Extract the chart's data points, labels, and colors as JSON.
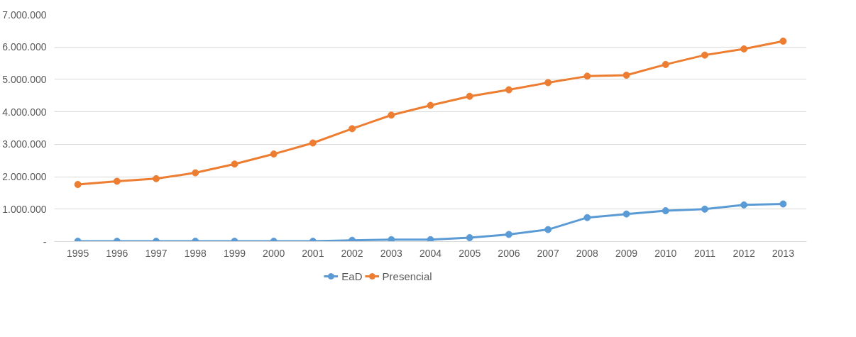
{
  "chart_data": {
    "type": "line",
    "categories": [
      "1995",
      "1996",
      "1997",
      "1998",
      "1999",
      "2000",
      "2001",
      "2002",
      "2003",
      "2004",
      "2005",
      "2006",
      "2007",
      "2008",
      "2009",
      "2010",
      "2011",
      "2012",
      "2013"
    ],
    "series": [
      {
        "name": "EaD",
        "color": "#5b9bd5",
        "values": [
          10000,
          10000,
          10000,
          10000,
          10000,
          10000,
          10000,
          40000,
          60000,
          60000,
          120000,
          220000,
          370000,
          740000,
          850000,
          950000,
          1000000,
          1130000,
          1160000
        ]
      },
      {
        "name": "Presencial",
        "color": "#ed7d31",
        "values": [
          1760000,
          1860000,
          1940000,
          2120000,
          2390000,
          2700000,
          3040000,
          3480000,
          3900000,
          4200000,
          4480000,
          4680000,
          4900000,
          5100000,
          5130000,
          5460000,
          5750000,
          5940000,
          6180000
        ]
      }
    ],
    "ylim": [
      0,
      7000000
    ],
    "yticks": [
      {
        "value": 0,
        "label": "-"
      },
      {
        "value": 1000000,
        "label": "1.000.000"
      },
      {
        "value": 2000000,
        "label": "2.000.000"
      },
      {
        "value": 3000000,
        "label": "3.000.000"
      },
      {
        "value": 4000000,
        "label": "4.000.000"
      },
      {
        "value": 5000000,
        "label": "5.000.000"
      },
      {
        "value": 6000000,
        "label": "6.000.000"
      },
      {
        "value": 7000000,
        "label": "7.000.000"
      }
    ],
    "grid": "y",
    "legend": "bottom",
    "marker": "circle",
    "line_style": "solid"
  }
}
